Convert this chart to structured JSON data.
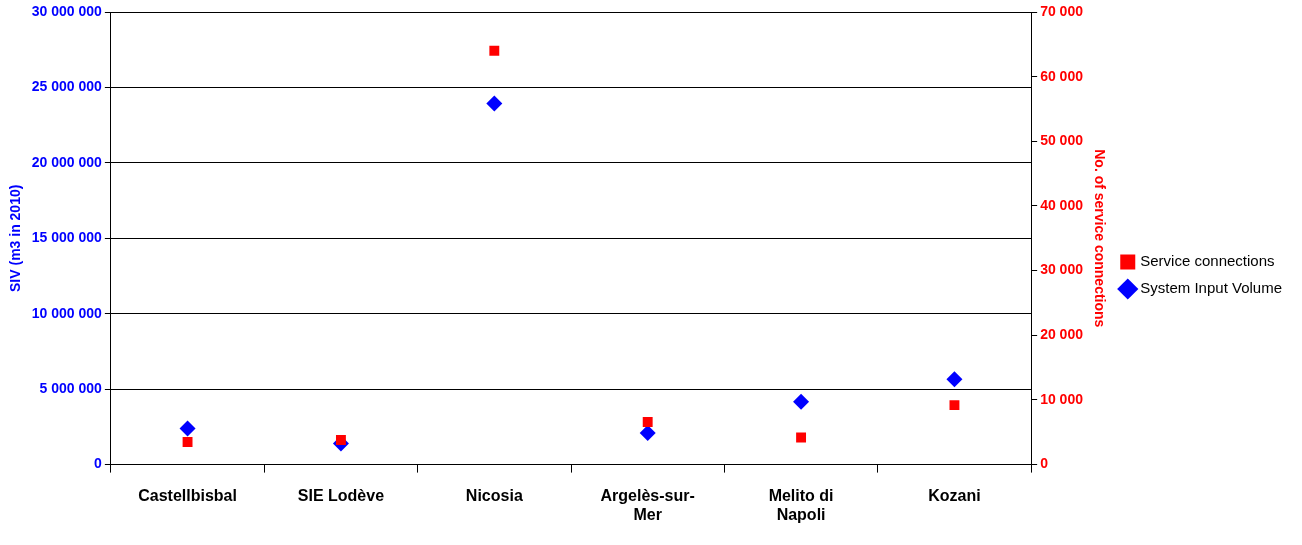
{
  "chart_data": {
    "type": "scatter",
    "ylabel": "SIV (m3 in 2010)",
    "y2label": "No. of service connections",
    "categories": [
      "Castellbisbal",
      "SIE Lodève",
      "Nicosia",
      "Argelès-sur-Mer",
      "Melito di Napoli",
      "Kozani"
    ],
    "series": [
      {
        "name": "System Input Volume",
        "color": "#0000ff",
        "marker": "diamond",
        "values": [
          2390000,
          1400000,
          23930000,
          2100000,
          4170000,
          5650000
        ]
      },
      {
        "name": "Service connections",
        "color": "#ff0000",
        "marker": "square",
        "axis": "y2",
        "values": [
          3500,
          3800,
          64000,
          6600,
          4200,
          9200
        ]
      }
    ],
    "ylim": [
      0,
      30000000
    ],
    "yticks": [
      {
        "value": 0,
        "label": "0"
      },
      {
        "value": 5000000,
        "label": "5 000 000"
      },
      {
        "value": 10000000,
        "label": "10 000 000"
      },
      {
        "value": 15000000,
        "label": "15 000 000"
      },
      {
        "value": 20000000,
        "label": "20 000 000"
      },
      {
        "value": 25000000,
        "label": "25 000 000"
      },
      {
        "value": 30000000,
        "label": "30 000 000"
      }
    ],
    "y2lim": [
      0,
      70000
    ],
    "y2ticks": [
      {
        "value": 0,
        "label": "0"
      },
      {
        "value": 10000,
        "label": "10 000"
      },
      {
        "value": 20000,
        "label": "20 000"
      },
      {
        "value": 30000,
        "label": "30 000"
      },
      {
        "value": 40000,
        "label": "40 000"
      },
      {
        "value": 50000,
        "label": "50 000"
      },
      {
        "value": 60000,
        "label": "60 000"
      },
      {
        "value": 70000,
        "label": "70 000"
      }
    ],
    "grid": "y",
    "legend": "right"
  }
}
